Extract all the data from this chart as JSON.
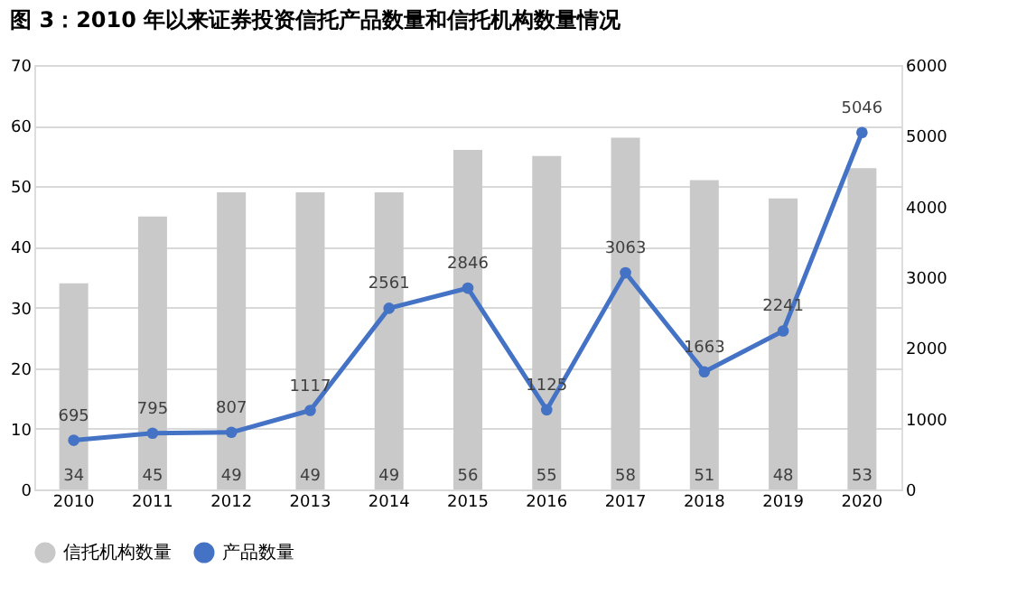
{
  "chart_data": {
    "type": "bar",
    "title": "图 3：2010 年以来证券投资信托产品数量和信托机构数量情况",
    "categories": [
      "2010",
      "2011",
      "2012",
      "2013",
      "2014",
      "2015",
      "2016",
      "2017",
      "2018",
      "2019",
      "2020"
    ],
    "series": [
      {
        "name": "信托机构数量",
        "color": "#c9c9c9",
        "values": [
          34,
          45,
          49,
          49,
          49,
          56,
          55,
          58,
          51,
          48,
          53
        ]
      },
      {
        "name": "产品数量",
        "type": "line",
        "axis": "y2",
        "color": "#4472c4",
        "values": [
          695,
          795,
          807,
          1117,
          2561,
          2846,
          1125,
          3063,
          1663,
          2241,
          5046
        ]
      }
    ],
    "ylim": [
      0,
      70
    ],
    "yticks": [
      0,
      10,
      20,
      30,
      40,
      50,
      60,
      70
    ],
    "y2lim": [
      0,
      6000
    ],
    "y2ticks": [
      0,
      1000,
      2000,
      3000,
      4000,
      5000,
      6000
    ],
    "data_labels": true,
    "grid": "y",
    "legend": "bottom",
    "marker": "circle",
    "line_style": "solid"
  }
}
